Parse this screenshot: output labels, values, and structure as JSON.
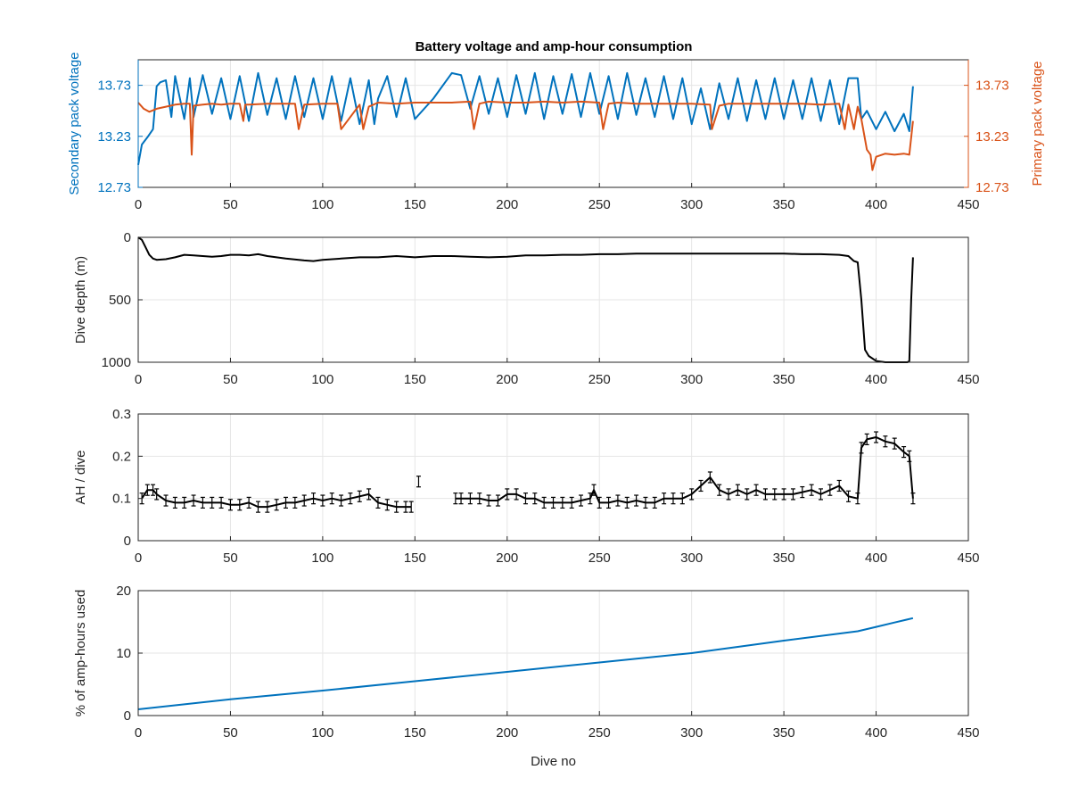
{
  "figure": {
    "title": "Battery voltage and amp-hour consumption",
    "colors": {
      "blue": "#0072bd",
      "orange": "#d95319",
      "black": "#000000",
      "grid": "#e6e6e6"
    }
  },
  "chart_data": [
    {
      "type": "line",
      "title": "Battery voltage and amp-hour consumption",
      "xlabel": "",
      "ylabel": "Secondary pack voltage",
      "ylabel_right": "Primary pack voltage",
      "xlim": [
        0,
        450
      ],
      "ylim": [
        12.73,
        13.98
      ],
      "x_ticks": [
        0,
        50,
        100,
        150,
        200,
        250,
        300,
        350,
        400,
        450
      ],
      "y_ticks": [
        12.73,
        13.23,
        13.73
      ],
      "y_ticks_right": [
        12.73,
        13.23,
        13.73
      ],
      "grid": true,
      "series": [
        {
          "color": "#0072bd",
          "axis": "left",
          "x": [
            0,
            2,
            5,
            8,
            10,
            12,
            15,
            18,
            20,
            25,
            28,
            30,
            35,
            40,
            45,
            50,
            55,
            60,
            65,
            70,
            75,
            80,
            85,
            90,
            95,
            100,
            105,
            110,
            115,
            120,
            125,
            128,
            130,
            135,
            140,
            145,
            150,
            160,
            170,
            175,
            180,
            185,
            190,
            195,
            200,
            205,
            210,
            215,
            220,
            225,
            230,
            235,
            240,
            245,
            250,
            255,
            260,
            265,
            270,
            275,
            280,
            285,
            290,
            295,
            300,
            305,
            310,
            315,
            320,
            325,
            330,
            335,
            340,
            345,
            350,
            355,
            360,
            365,
            370,
            375,
            380,
            385,
            390,
            392,
            395,
            400,
            405,
            410,
            415,
            418,
            420
          ],
          "y": [
            12.95,
            13.15,
            13.22,
            13.3,
            13.72,
            13.76,
            13.78,
            13.42,
            13.82,
            13.4,
            13.8,
            13.42,
            13.83,
            13.45,
            13.8,
            13.4,
            13.82,
            13.38,
            13.85,
            13.44,
            13.8,
            13.4,
            13.82,
            13.42,
            13.8,
            13.4,
            13.82,
            13.38,
            13.8,
            13.35,
            13.78,
            13.35,
            13.6,
            13.82,
            13.42,
            13.8,
            13.4,
            13.6,
            13.85,
            13.83,
            13.5,
            13.82,
            13.45,
            13.8,
            13.42,
            13.83,
            13.45,
            13.85,
            13.4,
            13.82,
            13.45,
            13.84,
            13.42,
            13.85,
            13.45,
            13.82,
            13.4,
            13.85,
            13.44,
            13.8,
            13.42,
            13.82,
            13.4,
            13.8,
            13.35,
            13.7,
            13.3,
            13.75,
            13.4,
            13.8,
            13.38,
            13.78,
            13.4,
            13.8,
            13.4,
            13.78,
            13.4,
            13.8,
            13.38,
            13.78,
            13.35,
            13.8,
            13.8,
            13.4,
            13.48,
            13.3,
            13.47,
            13.28,
            13.45,
            13.28,
            13.72
          ]
        },
        {
          "color": "#d95319",
          "axis": "right",
          "x": [
            0,
            3,
            6,
            10,
            15,
            20,
            25,
            28,
            29,
            30,
            35,
            40,
            45,
            50,
            55,
            57,
            58,
            60,
            70,
            80,
            85,
            87,
            90,
            100,
            108,
            110,
            120,
            122,
            125,
            130,
            140,
            150,
            170,
            180,
            182,
            185,
            190,
            200,
            210,
            220,
            230,
            240,
            250,
            252,
            255,
            260,
            270,
            280,
            300,
            310,
            311,
            315,
            320,
            330,
            340,
            350,
            360,
            370,
            380,
            383,
            385,
            388,
            390,
            392,
            395,
            397,
            398,
            400,
            405,
            410,
            415,
            418,
            420
          ],
          "y": [
            13.56,
            13.5,
            13.47,
            13.5,
            13.52,
            13.54,
            13.55,
            13.55,
            13.05,
            13.53,
            13.54,
            13.55,
            13.54,
            13.55,
            13.55,
            13.38,
            13.54,
            13.54,
            13.55,
            13.55,
            13.55,
            13.3,
            13.54,
            13.55,
            13.55,
            13.3,
            13.54,
            13.3,
            13.52,
            13.56,
            13.55,
            13.56,
            13.56,
            13.57,
            13.3,
            13.55,
            13.57,
            13.56,
            13.56,
            13.57,
            13.56,
            13.57,
            13.56,
            13.3,
            13.55,
            13.56,
            13.55,
            13.55,
            13.55,
            13.54,
            13.3,
            13.53,
            13.55,
            13.55,
            13.55,
            13.55,
            13.55,
            13.54,
            13.55,
            13.3,
            13.54,
            13.3,
            13.52,
            13.4,
            13.1,
            13.05,
            12.9,
            13.03,
            13.06,
            13.05,
            13.06,
            13.05,
            13.38
          ]
        }
      ]
    },
    {
      "type": "line",
      "xlabel": "",
      "ylabel": "Dive depth (m)",
      "xlim": [
        0,
        450
      ],
      "ylim": [
        0,
        1000
      ],
      "y_reversed": true,
      "x_ticks": [
        0,
        50,
        100,
        150,
        200,
        250,
        300,
        350,
        400,
        450
      ],
      "y_ticks": [
        0,
        500,
        1000
      ],
      "grid": true,
      "series": [
        {
          "color": "#000000",
          "x": [
            0,
            2,
            4,
            6,
            8,
            10,
            15,
            20,
            25,
            30,
            35,
            40,
            45,
            50,
            55,
            60,
            65,
            70,
            80,
            90,
            95,
            100,
            110,
            120,
            130,
            140,
            150,
            160,
            170,
            180,
            190,
            200,
            210,
            220,
            230,
            240,
            250,
            260,
            270,
            280,
            290,
            300,
            310,
            320,
            330,
            340,
            350,
            360,
            370,
            380,
            385,
            388,
            390,
            392,
            394,
            396,
            400,
            405,
            410,
            415,
            417,
            418,
            419,
            420
          ],
          "y": [
            0,
            20,
            80,
            140,
            170,
            180,
            175,
            160,
            140,
            145,
            150,
            155,
            150,
            140,
            140,
            145,
            135,
            150,
            170,
            185,
            190,
            180,
            170,
            160,
            160,
            150,
            160,
            150,
            150,
            155,
            160,
            155,
            145,
            145,
            140,
            140,
            135,
            135,
            130,
            130,
            130,
            130,
            130,
            130,
            130,
            130,
            130,
            135,
            135,
            140,
            150,
            190,
            200,
            500,
            900,
            950,
            990,
            1000,
            1000,
            1000,
            1000,
            990,
            500,
            160
          ]
        }
      ]
    },
    {
      "type": "line",
      "xlabel": "",
      "ylabel": "AH / dive",
      "xlim": [
        0,
        450
      ],
      "ylim": [
        0,
        0.3
      ],
      "x_ticks": [
        0,
        50,
        100,
        150,
        200,
        250,
        300,
        350,
        400,
        450
      ],
      "y_ticks": [
        0,
        0.1,
        0.2,
        0.3
      ],
      "grid": true,
      "error_bars": true,
      "series": [
        {
          "color": "#000000",
          "x": [
            2,
            5,
            8,
            10,
            15,
            20,
            25,
            30,
            35,
            40,
            45,
            50,
            55,
            60,
            65,
            70,
            75,
            80,
            85,
            90,
            95,
            100,
            105,
            110,
            115,
            120,
            125,
            130,
            135,
            140,
            145,
            148,
            null,
            152,
            null,
            172,
            175,
            180,
            185,
            190,
            195,
            200,
            205,
            210,
            215,
            220,
            225,
            230,
            235,
            240,
            245,
            247,
            250,
            255,
            260,
            265,
            270,
            275,
            280,
            285,
            290,
            295,
            300,
            305,
            310,
            315,
            320,
            325,
            330,
            335,
            340,
            345,
            350,
            355,
            360,
            365,
            370,
            375,
            380,
            385,
            390,
            392,
            395,
            400,
            405,
            410,
            415,
            418,
            420
          ],
          "y": [
            0.1,
            0.12,
            0.12,
            0.11,
            0.095,
            0.09,
            0.09,
            0.095,
            0.09,
            0.09,
            0.09,
            0.085,
            0.085,
            0.09,
            0.08,
            0.08,
            0.085,
            0.09,
            0.09,
            0.095,
            0.1,
            0.095,
            0.1,
            0.095,
            0.1,
            0.105,
            0.11,
            0.09,
            0.085,
            0.08,
            0.08,
            0.08,
            null,
            0.14,
            null,
            0.1,
            0.1,
            0.1,
            0.1,
            0.095,
            0.095,
            0.11,
            0.11,
            0.1,
            0.1,
            0.09,
            0.09,
            0.09,
            0.09,
            0.095,
            0.1,
            0.12,
            0.09,
            0.09,
            0.095,
            0.09,
            0.095,
            0.09,
            0.09,
            0.1,
            0.1,
            0.1,
            0.11,
            0.13,
            0.15,
            0.12,
            0.11,
            0.12,
            0.11,
            0.12,
            0.11,
            0.11,
            0.11,
            0.11,
            0.115,
            0.12,
            0.11,
            0.12,
            0.13,
            0.105,
            0.1,
            0.22,
            0.24,
            0.245,
            0.235,
            0.23,
            0.21,
            0.2,
            0.1
          ]
        }
      ]
    },
    {
      "type": "line",
      "xlabel": "Dive no",
      "ylabel": "% of amp-hours used",
      "xlim": [
        0,
        450
      ],
      "ylim": [
        0,
        20
      ],
      "x_ticks": [
        0,
        50,
        100,
        150,
        200,
        250,
        300,
        350,
        400,
        450
      ],
      "y_ticks": [
        0,
        10,
        20
      ],
      "grid": true,
      "series": [
        {
          "color": "#0072bd",
          "x": [
            0,
            50,
            100,
            150,
            200,
            250,
            300,
            350,
            390,
            400,
            410,
            420
          ],
          "y": [
            1.0,
            2.6,
            4.0,
            5.5,
            7.0,
            8.5,
            10.0,
            12.0,
            13.5,
            14.2,
            14.9,
            15.6
          ]
        }
      ]
    }
  ]
}
